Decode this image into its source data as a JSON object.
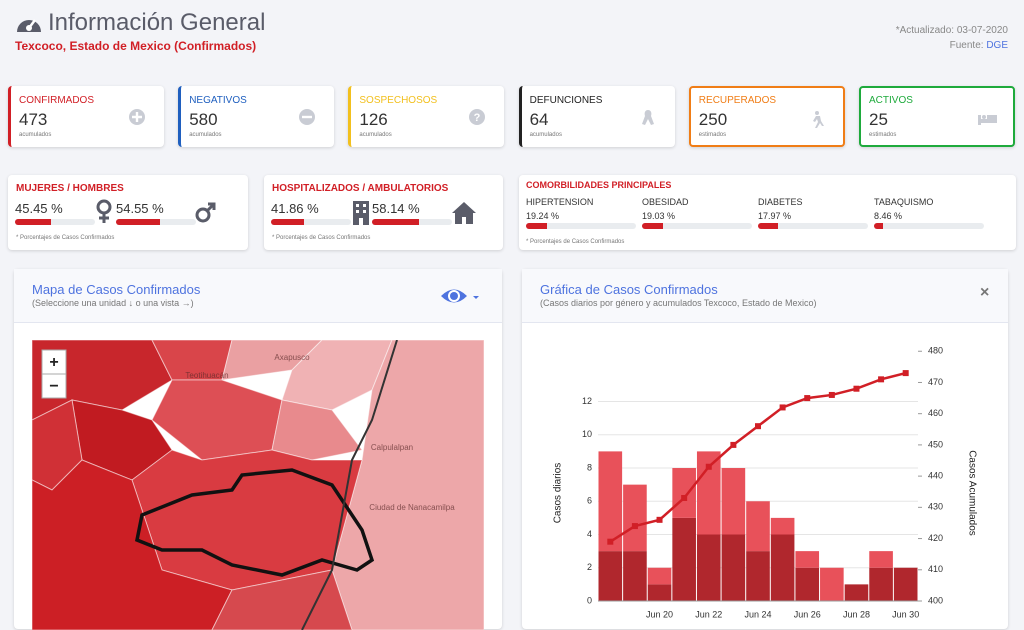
{
  "header": {
    "title": "Información General",
    "subtitle": "Texcoco, Estado de Mexico (Confirmados)",
    "updated": "*Actualizado: 03-07-2020",
    "source_label": "Fuente:",
    "source": "DGE"
  },
  "cards": [
    {
      "label": "CONFIRMADOS",
      "value": 473,
      "note": "acumulados",
      "color": "#d11f26"
    },
    {
      "label": "NEGATIVOS",
      "value": 580,
      "note": "acumulados",
      "color": "#1f5fbf"
    },
    {
      "label": "SOSPECHOSOS",
      "value": 126,
      "note": "acumulados",
      "color": "#f2c01e"
    },
    {
      "label": "DEFUNCIONES",
      "value": 64,
      "note": "acumulados",
      "color": "#222222"
    },
    {
      "label": "RECUPERADOS",
      "value": 250,
      "note": "estimados",
      "color": "#f07d16"
    },
    {
      "label": "ACTIVOS",
      "value": 25,
      "note": "estimados",
      "color": "#1eaa3c"
    }
  ],
  "ratios": [
    {
      "title": "MUJERES / HOMBRES",
      "items": [
        {
          "value": 45.45,
          "label": "45.45 %"
        },
        {
          "value": 54.55,
          "label": "54.55 %"
        }
      ],
      "note": "* Porcentajes de Casos Confirmados"
    },
    {
      "title": "HOSPITALIZADOS / AMBULATORIOS",
      "items": [
        {
          "value": 41.86,
          "label": "41.86 %"
        },
        {
          "value": 58.14,
          "label": "58.14 %"
        }
      ],
      "note": "* Porcentajes de Casos Confirmados"
    }
  ],
  "comorbidities": {
    "title": "COMORBILIDADES PRINCIPALES",
    "items": [
      {
        "name": "HIPERTENSION",
        "value": 19.24,
        "label": "19.24 %"
      },
      {
        "name": "OBESIDAD",
        "value": 19.03,
        "label": "19.03 %"
      },
      {
        "name": "DIABETES",
        "value": 17.97,
        "label": "17.97 %"
      },
      {
        "name": "TABAQUISMO",
        "value": 8.46,
        "label": "8.46 %"
      }
    ],
    "note": "* Porcentajes de Casos Confirmados"
  },
  "map": {
    "title": "Mapa de Casos Confirmados",
    "subtitle": "(Seleccione una unidad ↓ o una vista →)",
    "zoom_in": "+",
    "zoom_out": "−",
    "places": [
      "Axapusco",
      "Teotihuacán",
      "Calpulalpan",
      "Ciudad de Nanacamilpa"
    ]
  },
  "chart_data": {
    "type": "bar",
    "stacked": true,
    "title": "Gráfica de Casos Confirmados",
    "subtitle": "(Casos diarios por género y acumulados Texcoco, Estado de Mexico)",
    "y_label": "Casos diarios",
    "y2_label": "Casos Acumulados",
    "categories": [
      null,
      null,
      "Jun 20",
      null,
      "Jun 22",
      null,
      "Jun 24",
      null,
      "Jun 26",
      null,
      "Jun 28",
      null,
      "Jun 30"
    ],
    "series": [
      {
        "color": "#b0272d",
        "values": [
          3,
          3,
          1,
          5,
          4,
          4,
          3,
          4,
          2,
          0,
          1,
          2,
          2
        ]
      },
      {
        "color": "#e8515a",
        "values": [
          6,
          4,
          1,
          3,
          5,
          4,
          3,
          1,
          1,
          2,
          0,
          1,
          0
        ]
      },
      {
        "type": "line",
        "axis": "y2",
        "color": "#d11f26",
        "values": [
          419,
          424,
          426,
          433,
          443,
          450,
          456,
          462,
          465,
          466,
          468,
          471,
          473
        ]
      }
    ],
    "ylim": [
      0,
      15.4
    ],
    "yticks": [
      0,
      2,
      4,
      6,
      8,
      10,
      12
    ],
    "y2lim": [
      400,
      482
    ],
    "y2ticks": [
      400,
      410,
      420,
      430,
      440,
      450,
      460,
      470,
      480
    ],
    "grid": true
  }
}
